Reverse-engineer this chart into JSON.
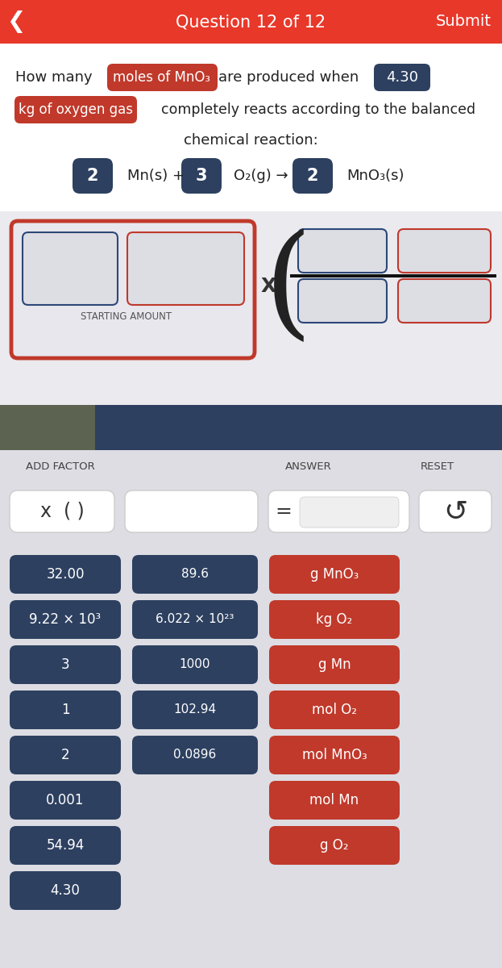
{
  "header_color": "#E8382A",
  "header_text": "Question 12 of 12",
  "submit_text": "Submit",
  "bg_color": "#F0F0F5",
  "white": "#FFFFFF",
  "dark_navy": "#2D4060",
  "red_badge": "#C0392B",
  "light_gray": "#E0DFE5",
  "gray_olive": "#636B55",
  "dark_blue_bar": "#2D4060",
  "lower_bg": "#DDDDE3",
  "question_line1_plain1": "How many",
  "question_badge1": "moles of MnO₃",
  "question_line1_plain2": "are produced when",
  "question_badge2": "4.30",
  "question_line2_badge": "kg of oxygen gas",
  "question_line2_plain": "completely reacts according to the balanced",
  "question_line3": "chemical reaction:",
  "equation_coeff1": "2",
  "equation_text1": "Mn(s) +",
  "equation_coeff2": "3",
  "equation_text2": "O₂(g) →",
  "equation_coeff3": "2",
  "equation_text3": "MnO₃(s)",
  "starting_amount_label": "STARTING AMOUNT",
  "add_factor_label": "ADD FACTOR",
  "answer_label": "ANSWER",
  "reset_label": "RESET",
  "button_col1": [
    "32.00",
    "9.22 × 10³",
    "3",
    "1",
    "2",
    "0.001",
    "54.94",
    "4.30"
  ],
  "button_col2": [
    "89.6",
    "6.022 × 10²³",
    "1000",
    "102.94",
    "0.0896"
  ],
  "button_col3": [
    "g MnO₃",
    "kg O₂",
    "g Mn",
    "mol O₂",
    "mol MnO₃",
    "mol Mn",
    "g O₂"
  ],
  "col1_color": "#2D4060",
  "col2_color": "#2D4060",
  "col3_color": "#C0392B"
}
